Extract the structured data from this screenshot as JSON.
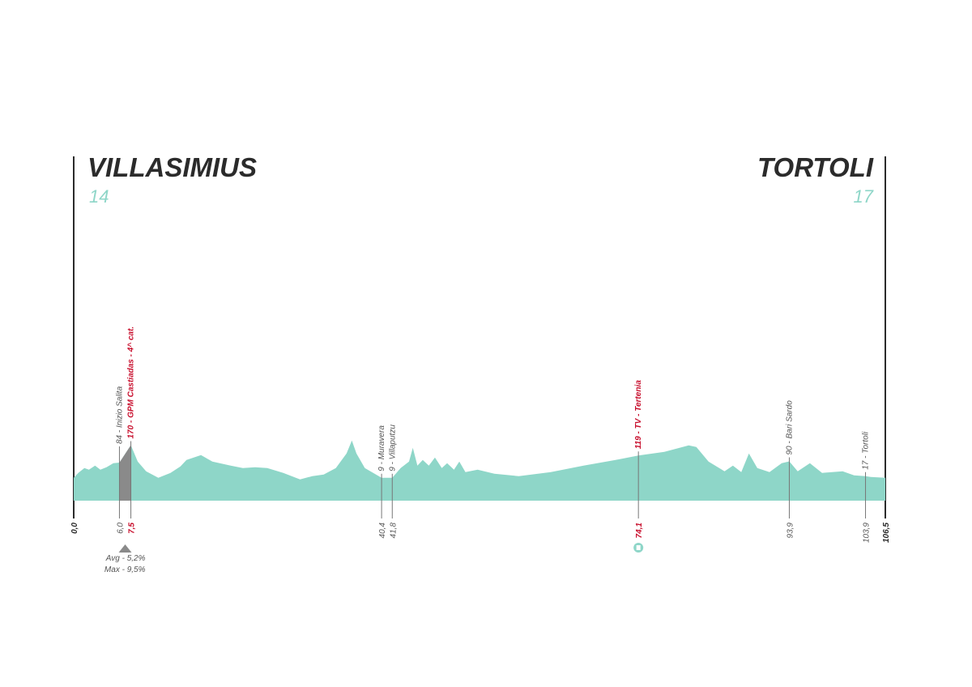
{
  "chart_data": {
    "type": "elevation-profile",
    "start": {
      "name": "VILLASIMIUS",
      "elevation": 14
    },
    "finish": {
      "name": "TORTOLI",
      "elevation": 17
    },
    "color": "#8ed6c8",
    "x": [
      0,
      0.6,
      1.4,
      2.0,
      2.8,
      3.5,
      4.3,
      5.2,
      6.0,
      7.5,
      8.4,
      9.5,
      11.1,
      12.7,
      14.0,
      14.8,
      16.7,
      18.2,
      20.6,
      22.2,
      23.8,
      25.4,
      27.5,
      29.7,
      31.3,
      32.8,
      34.4,
      35.8,
      36.5,
      37.1,
      38.2,
      40.4,
      41.8,
      42.9,
      44.0,
      44.5,
      45.1,
      45.8,
      46.6,
      47.4,
      48.3,
      49.0,
      49.9,
      50.6,
      51.4,
      53.0,
      55.2,
      58.4,
      62.6,
      66.9,
      71.1,
      74.1,
      77.5,
      80.7,
      81.7,
      83.3,
      85.4,
      86.5,
      87.6,
      88.6,
      89.7,
      91.3,
      92.9,
      93.9,
      95.0,
      96.6,
      98.2,
      100.9,
      102.4,
      103.9,
      104.6,
      106.5
    ],
    "values": [
      9,
      33,
      57,
      49,
      69,
      49,
      61,
      81,
      84,
      170,
      89,
      41,
      9,
      33,
      65,
      97,
      121,
      89,
      69,
      57,
      61,
      57,
      33,
      1,
      17,
      25,
      57,
      129,
      193,
      129,
      57,
      9,
      9,
      57,
      89,
      157,
      69,
      97,
      69,
      109,
      57,
      81,
      49,
      89,
      37,
      49,
      29,
      17,
      37,
      69,
      97,
      119,
      137,
      169,
      161,
      89,
      41,
      69,
      37,
      129,
      57,
      37,
      81,
      90,
      41,
      81,
      33,
      41,
      21,
      17,
      13,
      9
    ],
    "xlim": [
      0,
      106.5
    ],
    "ylim": [
      -104,
      1700
    ],
    "xticks": [
      {
        "value": 0,
        "label": "0,0"
      },
      {
        "value": 106.5,
        "label": "106,5"
      }
    ],
    "climb": {
      "color": "#8a8a8a",
      "avg": "Avg - 5,2%",
      "max": "Max - 9,5%"
    },
    "markers": [
      {
        "km": {
          "value": 6.0,
          "label": "6,0"
        },
        "label": "84 - Inizio Salita",
        "color": "#555555"
      },
      {
        "km": {
          "value": 7.5,
          "label": "7,5"
        },
        "label": "170 - GPM Castiadas - 4^ cat.",
        "color": "#c8102e"
      },
      {
        "km": {
          "value": 40.4,
          "label": "40,4"
        },
        "label": "9 - Muravera",
        "color": "#555555"
      },
      {
        "km": {
          "value": 41.8,
          "label": "41,8"
        },
        "label": "9 - Villaputzu",
        "color": "#555555"
      },
      {
        "km": {
          "value": 74.1,
          "label": "74,1"
        },
        "label": "119 - TV - Tertenia",
        "color": "#c8102e"
      },
      {
        "km": {
          "value": 93.9,
          "label": "93,9"
        },
        "label": "90 - Bari Sardo",
        "color": "#555555"
      },
      {
        "km": {
          "value": 103.9,
          "label": "103,9"
        },
        "label": "17 - Tortoli",
        "color": "#555555"
      }
    ]
  }
}
